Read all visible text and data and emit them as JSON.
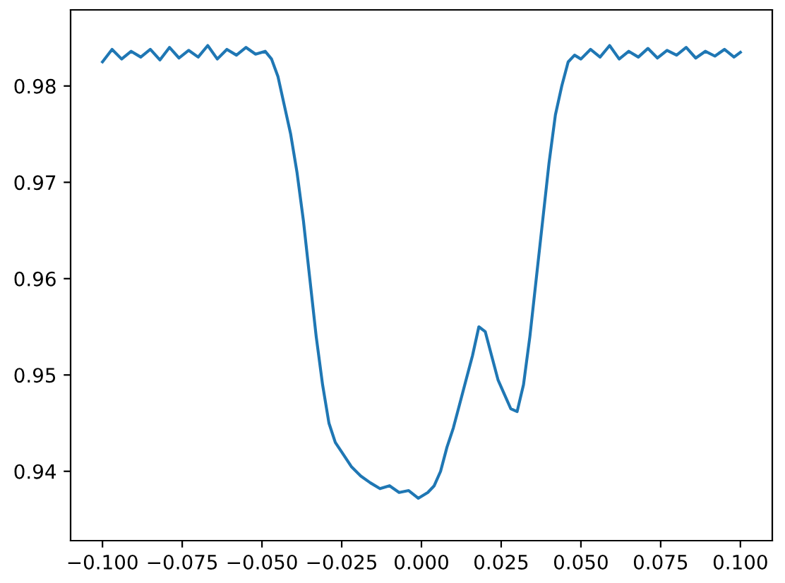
{
  "chart_data": {
    "type": "line",
    "xlim": [
      -0.11,
      0.11
    ],
    "ylim": [
      0.9328,
      0.9879
    ],
    "xticks": [
      {
        "value": -0.1,
        "label": "−0.100"
      },
      {
        "value": -0.075,
        "label": "−0.075"
      },
      {
        "value": -0.05,
        "label": "−0.050"
      },
      {
        "value": -0.025,
        "label": "−0.025"
      },
      {
        "value": 0.0,
        "label": "0.000"
      },
      {
        "value": 0.025,
        "label": "0.025"
      },
      {
        "value": 0.05,
        "label": "0.050"
      },
      {
        "value": 0.075,
        "label": "0.075"
      },
      {
        "value": 0.1,
        "label": "0.100"
      }
    ],
    "yticks": [
      {
        "value": 0.94,
        "label": "0.94"
      },
      {
        "value": 0.95,
        "label": "0.95"
      },
      {
        "value": 0.96,
        "label": "0.96"
      },
      {
        "value": 0.97,
        "label": "0.97"
      },
      {
        "value": 0.98,
        "label": "0.98"
      }
    ],
    "grid": false,
    "legend": false,
    "x": [
      -0.1,
      -0.097,
      -0.094,
      -0.091,
      -0.088,
      -0.085,
      -0.082,
      -0.079,
      -0.076,
      -0.073,
      -0.07,
      -0.067,
      -0.064,
      -0.061,
      -0.058,
      -0.055,
      -0.052,
      -0.049,
      -0.047,
      -0.045,
      -0.043,
      -0.041,
      -0.039,
      -0.037,
      -0.035,
      -0.033,
      -0.031,
      -0.029,
      -0.027,
      -0.025,
      -0.022,
      -0.019,
      -0.016,
      -0.013,
      -0.01,
      -0.007,
      -0.004,
      -0.001,
      0.002,
      0.004,
      0.006,
      0.008,
      0.01,
      0.012,
      0.014,
      0.016,
      0.018,
      0.02,
      0.022,
      0.024,
      0.026,
      0.028,
      0.03,
      0.032,
      0.034,
      0.036,
      0.038,
      0.04,
      0.042,
      0.044,
      0.046,
      0.048,
      0.05,
      0.053,
      0.056,
      0.059,
      0.062,
      0.065,
      0.068,
      0.071,
      0.074,
      0.077,
      0.08,
      0.083,
      0.086,
      0.089,
      0.092,
      0.095,
      0.098,
      0.1
    ],
    "series": [
      {
        "color": "#1f77b4",
        "values": [
          0.9825,
          0.9838,
          0.9828,
          0.9836,
          0.983,
          0.9838,
          0.9827,
          0.984,
          0.9829,
          0.9837,
          0.983,
          0.9842,
          0.9828,
          0.9838,
          0.9832,
          0.984,
          0.9833,
          0.9836,
          0.9828,
          0.981,
          0.978,
          0.975,
          0.971,
          0.966,
          0.96,
          0.954,
          0.949,
          0.945,
          0.943,
          0.942,
          0.9405,
          0.9395,
          0.9388,
          0.9382,
          0.9385,
          0.9378,
          0.938,
          0.9372,
          0.9378,
          0.9385,
          0.94,
          0.9425,
          0.9445,
          0.947,
          0.9495,
          0.952,
          0.955,
          0.9545,
          0.952,
          0.9495,
          0.948,
          0.9465,
          0.9462,
          0.949,
          0.954,
          0.96,
          0.966,
          0.972,
          0.977,
          0.98,
          0.9825,
          0.9832,
          0.9828,
          0.9838,
          0.983,
          0.9842,
          0.9828,
          0.9836,
          0.983,
          0.9839,
          0.9829,
          0.9837,
          0.9832,
          0.984,
          0.9829,
          0.9836,
          0.9831,
          0.9838,
          0.983,
          0.9835
        ]
      }
    ]
  }
}
